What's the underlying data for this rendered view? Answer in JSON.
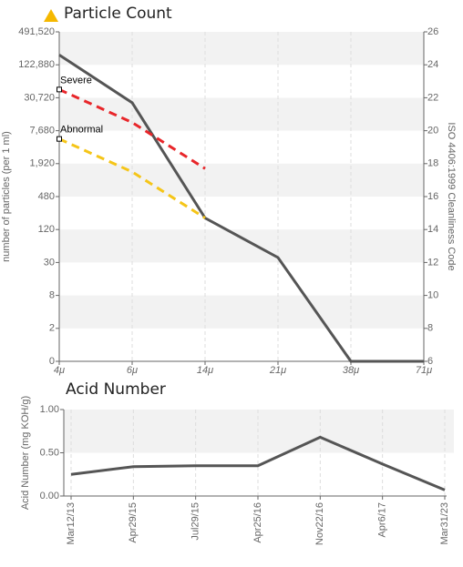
{
  "chart_data": [
    {
      "type": "line",
      "title": "Particle Count",
      "ylabel": "number of particles (per 1 ml)",
      "y2label": "ISO 4406:1999 Cleanliness Code",
      "categories": [
        "4μ",
        "6μ",
        "14μ",
        "21μ",
        "38μ",
        "71μ"
      ],
      "series": [
        {
          "color": "#555555",
          "axis": "y2",
          "values": [
            24.6,
            21.7,
            14.7,
            12.3,
            6,
            6
          ]
        },
        {
          "name": "Severe",
          "color": "#e8262a",
          "dashed": true,
          "axis": "y2",
          "values": [
            22.5,
            20.5,
            17.7,
            null,
            null,
            null
          ]
        },
        {
          "name": "Abnormal",
          "color": "#f5c518",
          "dashed": true,
          "axis": "y2",
          "values": [
            19.5,
            17.5,
            14.7,
            null,
            null,
            null
          ]
        }
      ],
      "yscale": "log",
      "ylim": [
        0.46875,
        491520
      ],
      "yticks": [
        491520,
        122880,
        30720,
        7680,
        1920,
        480,
        120,
        30,
        {
          "value": 7.5,
          "label": "8"
        },
        {
          "value": 1.875,
          "label": "2"
        },
        {
          "value": 0.46875,
          "label": "0"
        }
      ],
      "ytick_labels": [
        "491,520",
        "122,880",
        "30,720",
        "7,680",
        "1,920"
      ],
      "y2lim": [
        6,
        26
      ],
      "y2ticks": [
        6,
        8,
        10,
        12,
        14,
        16,
        18,
        20,
        22,
        24,
        26
      ],
      "grid": true
    },
    {
      "type": "line",
      "title": "Acid Number",
      "ylabel": "Acid Number (mg KOH/g)",
      "categories": [
        "Mar12/13",
        "Apr29/15",
        "Jul29/15",
        "Apr25/16",
        "Nov22/16",
        "Apr6/17",
        "Mar31/23"
      ],
      "series": [
        {
          "color": "#555555",
          "values": [
            0.25,
            0.34,
            0.35,
            0.35,
            0.68,
            0.37,
            0.07
          ]
        }
      ],
      "ylim": [
        0,
        1
      ],
      "yticks": [
        {
          "value": 0,
          "label": "0.00"
        },
        {
          "value": 0.5,
          "label": "0.50"
        },
        {
          "value": 1,
          "label": "1.00"
        }
      ],
      "grid": true
    }
  ]
}
